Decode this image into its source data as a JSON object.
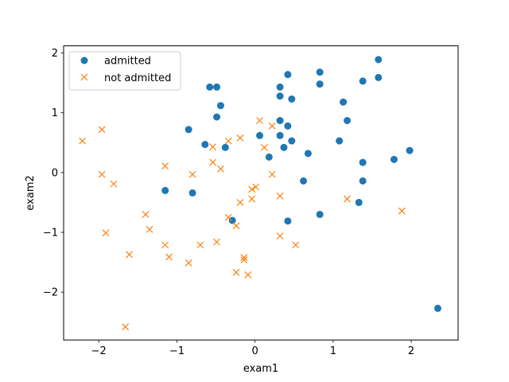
{
  "chart_data": {
    "type": "scatter",
    "xlabel": "exam1",
    "ylabel": "exam2",
    "xlim": [
      -2.45,
      2.6
    ],
    "ylim": [
      -2.8,
      2.12
    ],
    "xticks": [
      -2,
      -1,
      0,
      1,
      2
    ],
    "yticks": [
      -2,
      -1,
      0,
      1,
      2
    ],
    "legend_position": "upper-left",
    "series": [
      {
        "name": "admitted",
        "marker": "circle",
        "color": "#1f77b4",
        "points": [
          [
            -0.58,
            1.43
          ],
          [
            -0.49,
            1.43
          ],
          [
            -0.44,
            1.12
          ],
          [
            -0.49,
            0.93
          ],
          [
            -0.85,
            0.72
          ],
          [
            -0.64,
            0.47
          ],
          [
            -0.38,
            0.42
          ],
          [
            -1.15,
            -0.3
          ],
          [
            -0.8,
            -0.34
          ],
          [
            -0.29,
            -0.8
          ],
          [
            0.06,
            0.62
          ],
          [
            0.18,
            0.26
          ],
          [
            0.32,
            1.43
          ],
          [
            0.32,
            1.28
          ],
          [
            0.42,
            1.64
          ],
          [
            0.47,
            1.23
          ],
          [
            0.32,
            0.87
          ],
          [
            0.42,
            0.78
          ],
          [
            0.32,
            0.62
          ],
          [
            0.47,
            0.53
          ],
          [
            0.37,
            0.42
          ],
          [
            0.68,
            0.32
          ],
          [
            0.62,
            -0.14
          ],
          [
            0.42,
            -0.81
          ],
          [
            0.83,
            1.68
          ],
          [
            0.83,
            1.48
          ],
          [
            1.13,
            1.18
          ],
          [
            1.18,
            0.87
          ],
          [
            1.08,
            0.53
          ],
          [
            1.38,
            1.53
          ],
          [
            1.58,
            1.89
          ],
          [
            1.58,
            1.59
          ],
          [
            1.38,
            0.17
          ],
          [
            1.78,
            0.22
          ],
          [
            1.98,
            0.37
          ],
          [
            1.38,
            -0.14
          ],
          [
            1.33,
            -0.5
          ],
          [
            0.83,
            -0.7
          ],
          [
            2.34,
            -2.27
          ]
        ]
      },
      {
        "name": "not admitted",
        "marker": "x",
        "color": "#ff7f0e",
        "points": [
          [
            -2.21,
            0.53
          ],
          [
            -1.96,
            0.72
          ],
          [
            -1.96,
            -0.03
          ],
          [
            -1.81,
            -0.19
          ],
          [
            -1.91,
            -1.01
          ],
          [
            -1.61,
            -1.37
          ],
          [
            -1.4,
            -0.7
          ],
          [
            -1.35,
            -0.95
          ],
          [
            -1.15,
            0.11
          ],
          [
            -1.15,
            -1.21
          ],
          [
            -1.1,
            -1.41
          ],
          [
            -1.66,
            -2.58
          ],
          [
            -0.8,
            -0.03
          ],
          [
            -0.7,
            -1.21
          ],
          [
            -0.85,
            -1.51
          ],
          [
            -0.54,
            0.43
          ],
          [
            -0.54,
            0.17
          ],
          [
            -0.44,
            0.06
          ],
          [
            -0.34,
            0.53
          ],
          [
            -0.19,
            0.58
          ],
          [
            -0.34,
            -0.75
          ],
          [
            -0.19,
            -0.5
          ],
          [
            -0.24,
            -0.89
          ],
          [
            -0.49,
            -1.16
          ],
          [
            -0.14,
            -1.42
          ],
          [
            -0.14,
            -1.46
          ],
          [
            -0.24,
            -1.67
          ],
          [
            -0.09,
            -1.71
          ],
          [
            -0.04,
            -0.28
          ],
          [
            0.01,
            -0.24
          ],
          [
            -0.04,
            -0.44
          ],
          [
            0.06,
            0.87
          ],
          [
            0.22,
            0.78
          ],
          [
            0.12,
            0.42
          ],
          [
            0.22,
            -0.03
          ],
          [
            0.32,
            -0.39
          ],
          [
            0.32,
            -1.06
          ],
          [
            0.52,
            -1.21
          ],
          [
            1.18,
            -0.44
          ],
          [
            1.88,
            -0.64
          ]
        ]
      }
    ]
  }
}
